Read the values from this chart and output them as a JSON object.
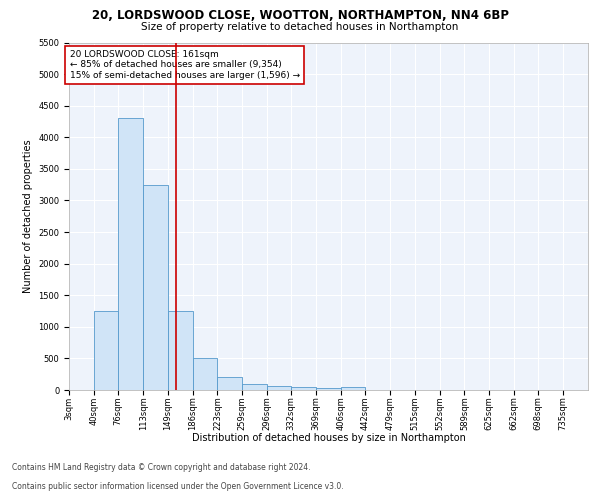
{
  "title_line1": "20, LORDSWOOD CLOSE, WOOTTON, NORTHAMPTON, NN4 6BP",
  "title_line2": "Size of property relative to detached houses in Northampton",
  "xlabel": "Distribution of detached houses by size in Northampton",
  "ylabel": "Number of detached properties",
  "bin_labels": [
    "3sqm",
    "40sqm",
    "76sqm",
    "113sqm",
    "149sqm",
    "186sqm",
    "223sqm",
    "259sqm",
    "296sqm",
    "332sqm",
    "369sqm",
    "406sqm",
    "442sqm",
    "479sqm",
    "515sqm",
    "552sqm",
    "589sqm",
    "625sqm",
    "662sqm",
    "698sqm",
    "735sqm"
  ],
  "bin_edges": [
    3,
    40,
    76,
    113,
    149,
    186,
    223,
    259,
    296,
    332,
    369,
    406,
    442,
    479,
    515,
    552,
    589,
    625,
    662,
    698,
    735
  ],
  "bar_heights": [
    0,
    1250,
    4300,
    3250,
    1250,
    500,
    200,
    100,
    70,
    50,
    30,
    50,
    0,
    0,
    0,
    0,
    0,
    0,
    0,
    0
  ],
  "bar_color": "#d0e4f7",
  "bar_edge_color": "#5599cc",
  "red_line_x": 161,
  "red_line_color": "#cc0000",
  "annotation_text": "20 LORDSWOOD CLOSE: 161sqm\n← 85% of detached houses are smaller (9,354)\n15% of semi-detached houses are larger (1,596) →",
  "annotation_box_color": "#ffffff",
  "annotation_box_edge": "#cc0000",
  "ylim": [
    0,
    5500
  ],
  "yticks": [
    0,
    500,
    1000,
    1500,
    2000,
    2500,
    3000,
    3500,
    4000,
    4500,
    5000,
    5500
  ],
  "background_color": "#eef3fb",
  "grid_color": "#ffffff",
  "footer_line1": "Contains HM Land Registry data © Crown copyright and database right 2024.",
  "footer_line2": "Contains public sector information licensed under the Open Government Licence v3.0.",
  "title_fontsize": 8.5,
  "subtitle_fontsize": 7.5,
  "axis_label_fontsize": 7,
  "tick_fontsize": 6,
  "annotation_fontsize": 6.5,
  "footer_fontsize": 5.5
}
